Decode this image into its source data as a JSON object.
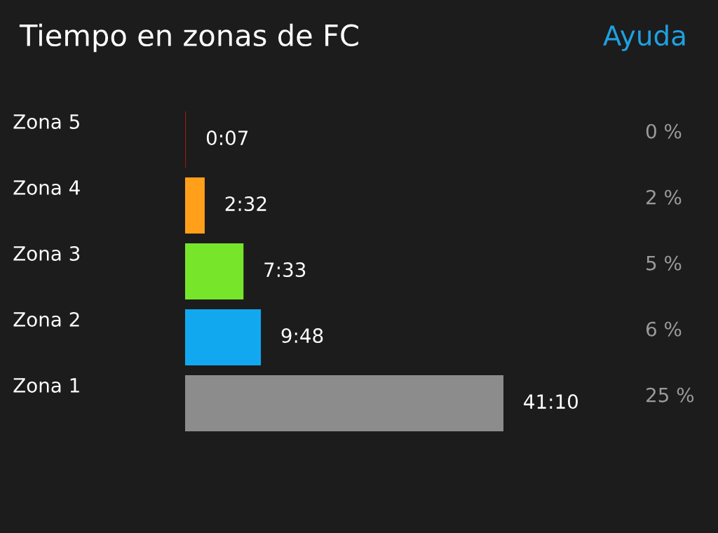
{
  "chart_data": {
    "type": "bar",
    "orientation": "horizontal",
    "title": "Tiempo en zonas de FC",
    "categories": [
      "Zona 5",
      "Zona 4",
      "Zona 3",
      "Zona 2",
      "Zona 1"
    ],
    "values": [
      7,
      152,
      453,
      588,
      2470
    ],
    "xlim": [
      0,
      2470
    ],
    "colors": [
      "#8b1a1a",
      "#ff9f1a",
      "#77e62b",
      "#12a8f0",
      "#8c8c8c"
    ],
    "value_labels": [
      "0:07",
      "2:32",
      "7:33",
      "9:48",
      "41:10"
    ],
    "annotations": [
      "Ayuda",
      "0 %",
      "2 %",
      "5 %",
      "6 %",
      "25 %"
    ],
    "tick_labels": "y",
    "grid": false,
    "legend": false
  }
}
